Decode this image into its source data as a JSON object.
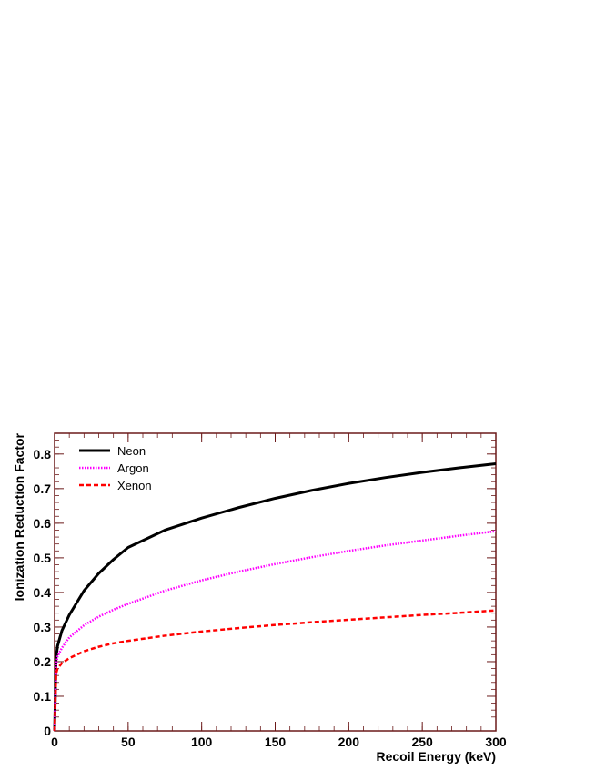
{
  "chart_data": {
    "type": "line",
    "title": "",
    "xlabel": "Recoil Energy (keV)",
    "ylabel": "Ionization Reduction Factor",
    "xlim": [
      0,
      300
    ],
    "ylim": [
      0,
      0.86
    ],
    "x_ticks": [
      0,
      50,
      100,
      150,
      200,
      250,
      300
    ],
    "x_tick_labels": [
      "0",
      "50",
      "100",
      "150",
      "200",
      "250",
      "300"
    ],
    "y_ticks": [
      0,
      0.1,
      0.2,
      0.3,
      0.4,
      0.5,
      0.6,
      0.7,
      0.8
    ],
    "y_tick_labels": [
      "0",
      "0.1",
      "0.2",
      "0.3",
      "0.4",
      "0.5",
      "0.6",
      "0.7",
      "0.8"
    ],
    "grid": false,
    "legend_position": "top-left",
    "x": [
      0,
      1,
      2,
      5,
      10,
      20,
      30,
      40,
      50,
      75,
      100,
      125,
      150,
      175,
      200,
      225,
      250,
      275,
      300
    ],
    "series": [
      {
        "name": "Neon",
        "color": "#000000",
        "style": "solid",
        "values": [
          0.0,
          0.21,
          0.245,
          0.29,
          0.335,
          0.405,
          0.455,
          0.495,
          0.53,
          0.58,
          0.615,
          0.645,
          0.672,
          0.695,
          0.715,
          0.732,
          0.747,
          0.76,
          0.772
        ]
      },
      {
        "name": "Argon",
        "color": "#ff00ff",
        "style": "dotted",
        "values": [
          0.0,
          0.19,
          0.215,
          0.24,
          0.27,
          0.305,
          0.33,
          0.35,
          0.367,
          0.405,
          0.435,
          0.46,
          0.482,
          0.502,
          0.52,
          0.536,
          0.55,
          0.564,
          0.577
        ]
      },
      {
        "name": "Xenon",
        "color": "#ff0000",
        "style": "dashed",
        "values": [
          0.0,
          0.165,
          0.18,
          0.196,
          0.21,
          0.23,
          0.243,
          0.253,
          0.26,
          0.275,
          0.287,
          0.297,
          0.306,
          0.314,
          0.321,
          0.328,
          0.335,
          0.341,
          0.348
        ]
      }
    ]
  }
}
